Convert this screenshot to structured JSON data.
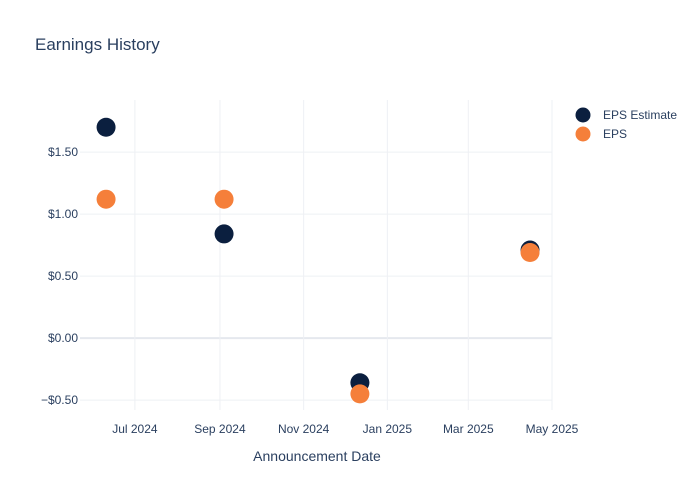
{
  "chart_data": {
    "type": "scatter",
    "title": "Earnings History",
    "xlabel": "Announcement Date",
    "ylabel": "",
    "x_ticks": [
      {
        "date": "2024-07-01",
        "label": "Jul 2024"
      },
      {
        "date": "2024-09-01",
        "label": "Sep 2024"
      },
      {
        "date": "2024-11-01",
        "label": "Nov 2024"
      },
      {
        "date": "2025-01-01",
        "label": "Jan 2025"
      },
      {
        "date": "2025-03-01",
        "label": "Mar 2025"
      },
      {
        "date": "2025-05-01",
        "label": "May 2025"
      }
    ],
    "y_ticks": [
      {
        "value": -0.5,
        "label": "−$0.50"
      },
      {
        "value": 0,
        "label": "$0.00"
      },
      {
        "value": 0.5,
        "label": "$0.50"
      },
      {
        "value": 1.0,
        "label": "$1.00"
      },
      {
        "value": 1.5,
        "label": "$1.50"
      }
    ],
    "xlim": [
      "2024-05-22",
      "2025-05-01"
    ],
    "ylim": [
      -0.58,
      1.92
    ],
    "grid": true,
    "legend_position": "top-right",
    "series": [
      {
        "name": "EPS Estimate",
        "color": "#0b1f3f",
        "points": [
          {
            "x": "2024-06-10",
            "y": 1.7
          },
          {
            "x": "2024-09-04",
            "y": 0.84
          },
          {
            "x": "2024-12-12",
            "y": -0.36
          },
          {
            "x": "2025-04-15",
            "y": 0.71
          }
        ]
      },
      {
        "name": "EPS",
        "color": "#f57f3a",
        "points": [
          {
            "x": "2024-06-10",
            "y": 1.12
          },
          {
            "x": "2024-09-04",
            "y": 1.12
          },
          {
            "x": "2024-12-12",
            "y": -0.45
          },
          {
            "x": "2025-04-15",
            "y": 0.69
          }
        ]
      }
    ]
  }
}
